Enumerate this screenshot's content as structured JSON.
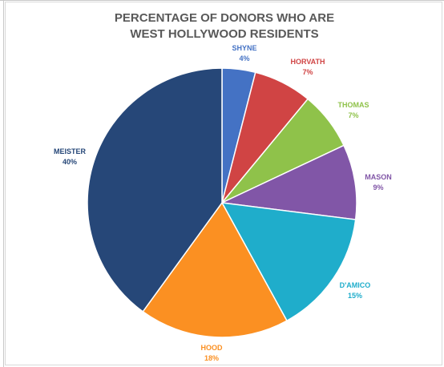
{
  "chart_data": {
    "type": "pie",
    "title_line1": "PERCENTAGE OF DONORS WHO ARE",
    "title_line2": "WEST HOLLYWOOD RESIDENTS",
    "slices": [
      {
        "name": "SHYNE",
        "value": 4,
        "label": "4%",
        "color": "#4472c4"
      },
      {
        "name": "HORVATH",
        "value": 7,
        "label": "7%",
        "color": "#d04444"
      },
      {
        "name": "THOMAS",
        "value": 7,
        "label": "7%",
        "color": "#8fc24a"
      },
      {
        "name": "MASON",
        "value": 9,
        "label": "9%",
        "color": "#8156a7"
      },
      {
        "name": "D'AMICO",
        "value": 15,
        "label": "15%",
        "color": "#1fadcb"
      },
      {
        "name": "HOOD",
        "value": 18,
        "label": "18%",
        "color": "#fb9022"
      },
      {
        "name": "MEISTER",
        "value": 40,
        "label": "40%",
        "color": "#264778"
      }
    ],
    "start_angle_deg": 0,
    "direction": "clockwise"
  }
}
